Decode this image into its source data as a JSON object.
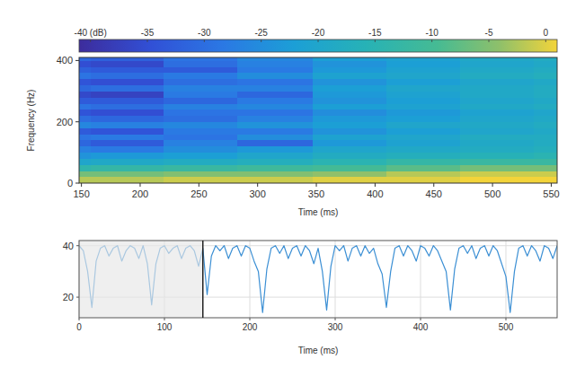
{
  "chart_data": [
    {
      "type": "heatmap",
      "x_label": "Time (ms)",
      "y_label": "Frequency (Hz)",
      "xlim": [
        148,
        555
      ],
      "ylim": [
        0,
        410
      ],
      "xticks": [
        150,
        200,
        250,
        300,
        350,
        400,
        450,
        500,
        550
      ],
      "yticks": [
        0,
        200,
        400
      ],
      "grid": false,
      "x_edges": [
        148,
        158,
        220,
        283,
        347,
        410,
        472,
        535,
        555
      ],
      "y_edges": [
        0,
        20,
        40,
        60,
        80,
        100,
        120,
        140,
        160,
        180,
        200,
        220,
        240,
        260,
        280,
        300,
        320,
        340,
        360,
        380,
        400,
        420
      ],
      "cells": [
        [
          -2,
          -6,
          -14,
          -20,
          -24,
          -27,
          -31,
          -29,
          -33,
          -26,
          -30,
          -34,
          -29,
          -33,
          -36,
          -31,
          -34,
          -29,
          -32,
          -35,
          -31
        ],
        [
          -2,
          -6,
          -13,
          -19,
          -23,
          -28,
          -33,
          -28,
          -34,
          -27,
          -31,
          -35,
          -30,
          -33,
          -37,
          -30,
          -35,
          -30,
          -33,
          -36,
          -32
        ],
        [
          -1,
          -5,
          -12,
          -18,
          -22,
          -25,
          -27,
          -29,
          -28,
          -26,
          -30,
          -29,
          -27,
          -31,
          -28,
          -27,
          -30,
          -28,
          -33,
          -30,
          -29
        ],
        [
          -1,
          -5,
          -11,
          -17,
          -20,
          -23,
          -31,
          -25,
          -28,
          -24,
          -27,
          -29,
          -26,
          -28,
          -31,
          -27,
          -29,
          -25,
          -28,
          -27,
          -26
        ],
        [
          0,
          -4,
          -10,
          -15,
          -18,
          -20,
          -23,
          -21,
          -24,
          -22,
          -23,
          -25,
          -22,
          -24,
          -23,
          -22,
          -24,
          -21,
          -23,
          -24,
          -22
        ],
        [
          0,
          -2,
          -8,
          -13,
          -17,
          -19,
          -21,
          -20,
          -22,
          -20,
          -22,
          -23,
          -21,
          -22,
          -21,
          -20,
          -22,
          -20,
          -21,
          -22,
          -21
        ],
        [
          1,
          -1,
          -6,
          -12,
          -16,
          -18,
          -19,
          -18,
          -20,
          -19,
          -20,
          -21,
          -19,
          -20,
          -19,
          -19,
          -20,
          -18,
          -19,
          -20,
          -19
        ],
        [
          1,
          -1,
          -6,
          -12,
          -15,
          -17,
          -18,
          -18,
          -19,
          -18,
          -19,
          -20,
          -18,
          -19,
          -18,
          -18,
          -19,
          -17,
          -18,
          -19,
          -18
        ]
      ],
      "color_range": [
        -41,
        1
      ],
      "color_ticks": [
        {
          "value": -40,
          "label": "-40 (dB)"
        },
        -35,
        -30,
        -25,
        -20,
        -15,
        -10,
        -5,
        0
      ]
    },
    {
      "type": "line",
      "x_label": "Time (ms)",
      "xlim": [
        0,
        560
      ],
      "ylim": [
        12,
        42
      ],
      "xticks": [
        0,
        100,
        200,
        300,
        400,
        500
      ],
      "yticks": [
        20,
        40
      ],
      "grid": true,
      "color": "#3b8fd4",
      "highlight": [
        0,
        145
      ],
      "x": [
        0,
        5,
        10,
        15,
        20,
        25,
        30,
        35,
        40,
        45,
        50,
        55,
        60,
        65,
        70,
        75,
        80,
        85,
        90,
        95,
        100,
        105,
        110,
        115,
        120,
        125,
        130,
        135,
        140,
        145,
        150,
        155,
        160,
        165,
        170,
        175,
        180,
        185,
        190,
        195,
        200,
        205,
        210,
        215,
        220,
        225,
        230,
        235,
        240,
        245,
        250,
        255,
        260,
        265,
        270,
        275,
        280,
        285,
        290,
        295,
        300,
        305,
        310,
        315,
        320,
        325,
        330,
        335,
        340,
        345,
        350,
        355,
        360,
        365,
        370,
        375,
        380,
        385,
        390,
        395,
        400,
        405,
        410,
        415,
        420,
        425,
        430,
        435,
        440,
        445,
        450,
        455,
        460,
        465,
        470,
        475,
        480,
        485,
        490,
        495,
        500,
        505,
        510,
        515,
        520,
        525,
        530,
        535,
        540,
        545,
        550,
        555,
        560
      ],
      "values": [
        40,
        38,
        30,
        16,
        34,
        39,
        40,
        36,
        39,
        40,
        34,
        38,
        40,
        39,
        35,
        40,
        33,
        17,
        33,
        39,
        40,
        37,
        39,
        40,
        35,
        39,
        40,
        38,
        32,
        39,
        21,
        36,
        40,
        38,
        40,
        35,
        39,
        40,
        36,
        40,
        39,
        34,
        30,
        14,
        31,
        39,
        40,
        37,
        40,
        35,
        39,
        40,
        36,
        40,
        38,
        33,
        39,
        30,
        15,
        32,
        40,
        38,
        40,
        34,
        39,
        40,
        36,
        40,
        37,
        39,
        33,
        29,
        16,
        30,
        39,
        40,
        36,
        40,
        38,
        34,
        40,
        39,
        36,
        40,
        38,
        34,
        30,
        15,
        31,
        39,
        40,
        37,
        40,
        35,
        39,
        40,
        36,
        40,
        38,
        33,
        28,
        14,
        30,
        39,
        40,
        36,
        40,
        38,
        34,
        40,
        39,
        35,
        40
      ]
    }
  ]
}
